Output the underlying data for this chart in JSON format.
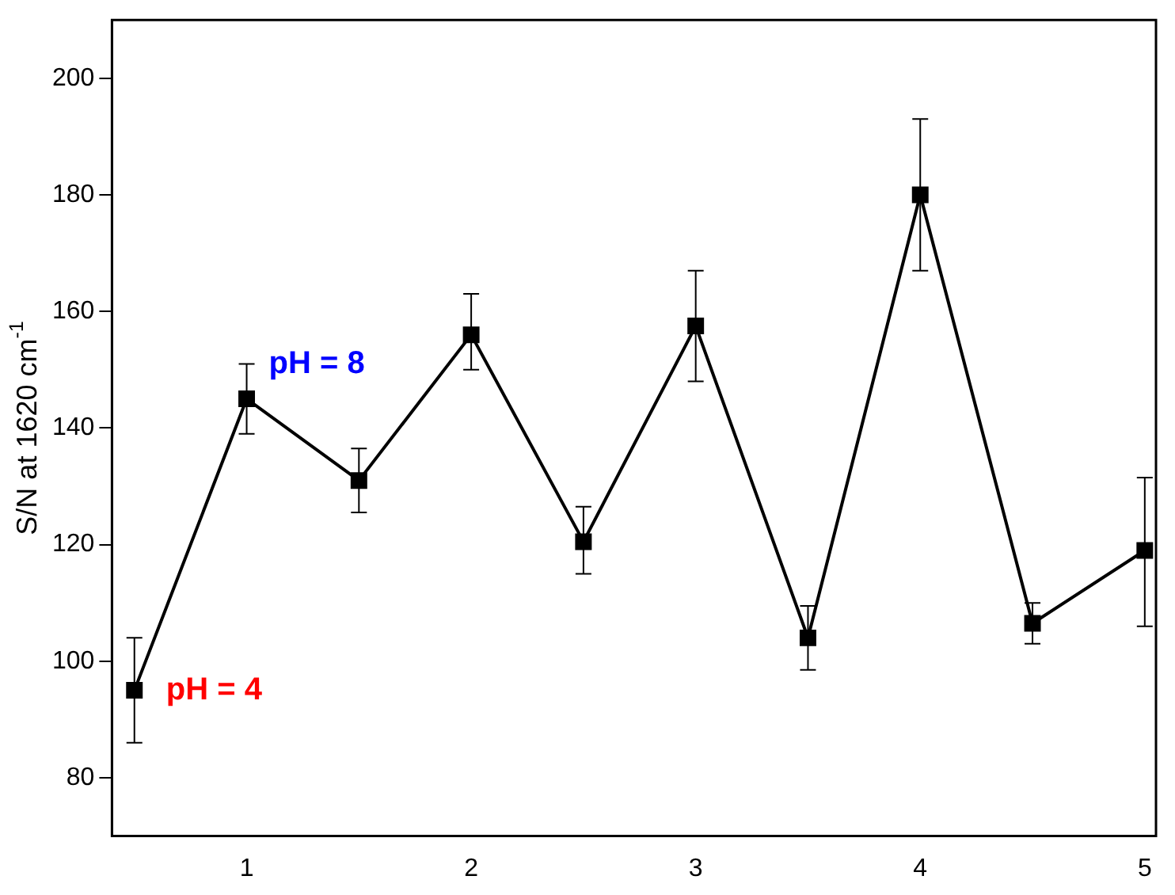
{
  "chart_data": {
    "type": "line",
    "ylabel": "S/N at 1620 cm$^{-1}$",
    "x": [
      0.5,
      1,
      1.5,
      2,
      2.5,
      3,
      3.5,
      4,
      4.5,
      5
    ],
    "series": [
      {
        "color": "#000000",
        "values": [
          95,
          145,
          131,
          156,
          120.5,
          157.5,
          104,
          180,
          106.5,
          119
        ],
        "errors": [
          [
            86,
            104
          ],
          [
            139,
            151
          ],
          [
            125.5,
            136.5
          ],
          [
            150,
            163
          ],
          [
            115,
            126.5
          ],
          [
            148,
            167
          ],
          [
            98.5,
            109.5
          ],
          [
            167,
            193
          ],
          [
            103,
            110
          ],
          [
            106,
            131.5
          ]
        ]
      }
    ],
    "xlim": [
      0.4,
      5.05
    ],
    "xticks": [
      1,
      2,
      3,
      4,
      5
    ],
    "ylim": [
      70,
      210
    ],
    "yticks": [
      80,
      100,
      120,
      140,
      160,
      180,
      200
    ],
    "grid": false,
    "legend": false,
    "marker": "square",
    "line_style": "solid",
    "annotations": [
      {
        "text": "pH = 4",
        "x": 0.5,
        "y": 95
      },
      {
        "text": "pH = 8",
        "x": 1,
        "y": 145
      }
    ]
  }
}
